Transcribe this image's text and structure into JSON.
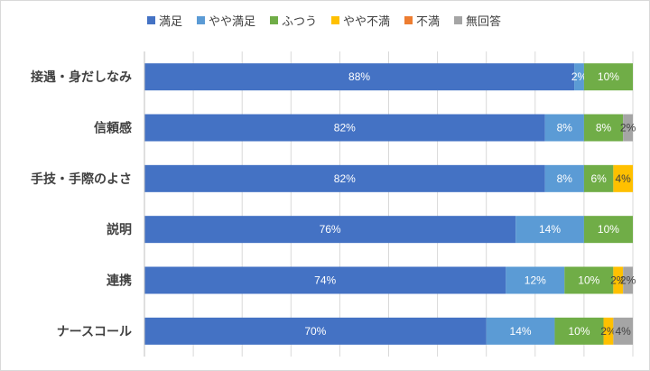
{
  "chart_data": {
    "type": "bar",
    "orientation": "horizontal",
    "stacked": "percent",
    "categories": [
      "接遇・身だしなみ",
      "信頼感",
      "手技・手際のよさ",
      "説明",
      "連携",
      "ナースコール"
    ],
    "series": [
      {
        "name": "満足",
        "color": "#4472c4",
        "values": [
          88,
          82,
          82,
          76,
          74,
          70
        ]
      },
      {
        "name": "やや満足",
        "color": "#5b9bd5",
        "values": [
          2,
          8,
          8,
          14,
          12,
          14
        ]
      },
      {
        "name": "ふつう",
        "color": "#70ad47",
        "values": [
          10,
          8,
          6,
          10,
          10,
          10
        ]
      },
      {
        "name": "やや不満",
        "color": "#ffc000",
        "values": [
          0,
          0,
          4,
          0,
          2,
          2
        ]
      },
      {
        "name": "不満",
        "color": "#ed7d31",
        "values": [
          0,
          0,
          0,
          0,
          0,
          0
        ]
      },
      {
        "name": "無回答",
        "color": "#a5a5a5",
        "values": [
          0,
          2,
          0,
          0,
          2,
          4
        ]
      }
    ],
    "data_labels": [
      [
        "88%",
        "2%",
        "10%",
        "",
        "",
        ""
      ],
      [
        "82%",
        "8%",
        "8%",
        "",
        "",
        "2%"
      ],
      [
        "82%",
        "8%",
        "6%",
        "4%",
        "",
        ""
      ],
      [
        "76%",
        "14%",
        "10%",
        "",
        "",
        ""
      ],
      [
        "74%",
        "12%",
        "10%",
        "2%",
        "",
        "2%"
      ],
      [
        "70%",
        "14%",
        "10%",
        "2%",
        "",
        "4%"
      ]
    ],
    "xlim": [
      0,
      100
    ],
    "grid": true,
    "legend_position": "top"
  }
}
